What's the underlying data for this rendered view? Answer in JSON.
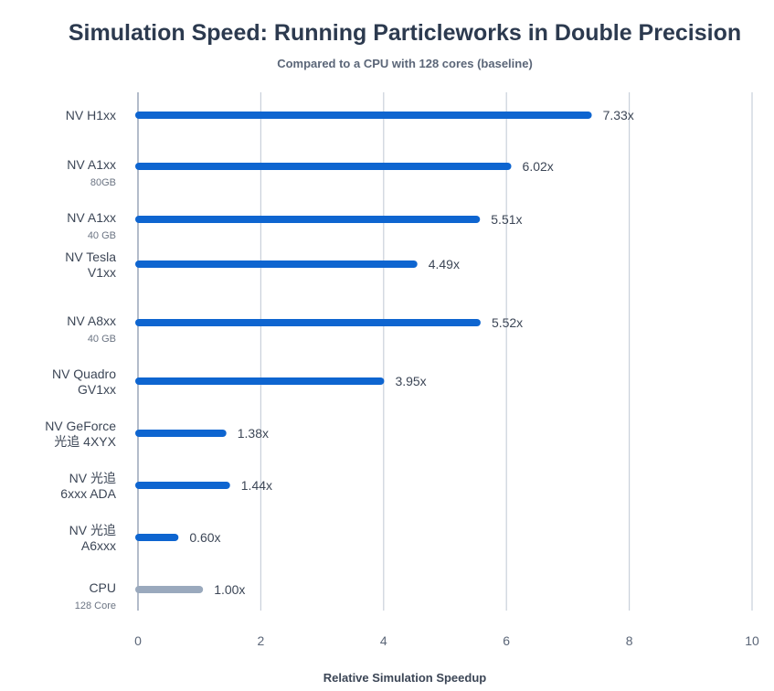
{
  "chart_data": {
    "type": "bar",
    "orientation": "horizontal",
    "title": "Simulation Speed: Running Particleworks in Double Precision",
    "subtitle": "Compared to a CPU with 128 cores (baseline)",
    "xlabel": "Relative Simulation Speedup",
    "ylabel": "",
    "xlim": [
      0,
      10
    ],
    "xticks": [
      "0",
      "2",
      "4",
      "6",
      "8",
      "10"
    ],
    "grid": true,
    "colors": {
      "gpu": "#0e65d0",
      "cpu": "#9aa9bd"
    },
    "categories": [
      {
        "label": [
          "NV H1xx"
        ],
        "sub": "",
        "value": 7.33,
        "value_label": "7.33x",
        "color_key": "gpu"
      },
      {
        "label": [
          "NV A1xx"
        ],
        "sub": "80GB",
        "value": 6.02,
        "value_label": "6.02x",
        "color_key": "gpu"
      },
      {
        "label": [
          "NV A1xx"
        ],
        "sub": "40 GB",
        "value": 5.51,
        "value_label": "5.51x",
        "color_key": "gpu"
      },
      {
        "label": [
          "NV Tesla",
          "V1xx"
        ],
        "sub": "",
        "value": 4.49,
        "value_label": "4.49x",
        "color_key": "gpu"
      },
      {
        "label": [
          "NV A8xx"
        ],
        "sub": "40 GB",
        "value": 5.52,
        "value_label": "5.52x",
        "color_key": "gpu"
      },
      {
        "label": [
          "NV Quadro",
          "GV1xx"
        ],
        "sub": "",
        "value": 3.95,
        "value_label": "3.95x",
        "color_key": "gpu"
      },
      {
        "label": [
          "NV GeForce",
          "光追 4XYX"
        ],
        "sub": "",
        "value": 1.38,
        "value_label": "1.38x",
        "color_key": "gpu"
      },
      {
        "label": [
          "NV 光追",
          "6xxx ADA"
        ],
        "sub": "",
        "value": 1.44,
        "value_label": "1.44x",
        "color_key": "gpu"
      },
      {
        "label": [
          "NV 光追",
          "A6xxx"
        ],
        "sub": "",
        "value": 0.6,
        "value_label": "0.60x",
        "color_key": "gpu"
      },
      {
        "label": [
          "CPU"
        ],
        "sub": "128 Core",
        "value": 1.0,
        "value_label": "1.00x",
        "color_key": "cpu"
      }
    ]
  }
}
